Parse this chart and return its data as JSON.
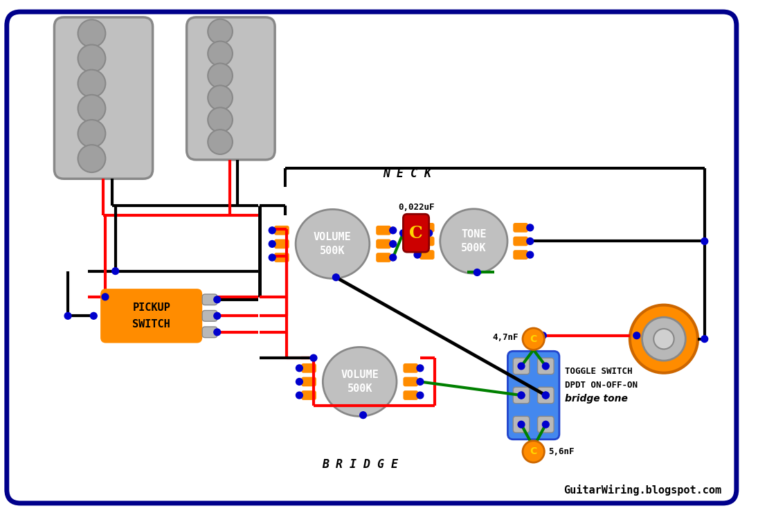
{
  "bg_color": "#ffffff",
  "border_color": "#00008B",
  "neck_label": "N E C K",
  "bridge_label": "B R I D G E",
  "pickup_switch_label": [
    "PICKUP",
    "SWITCH"
  ],
  "vol_label": [
    "VOLUME",
    "500K"
  ],
  "tone_label": [
    "TONE",
    "500K"
  ],
  "cap1_label": "0,022uF",
  "cap2_label": "4,7nF",
  "cap3_label": "5,6nF",
  "toggle_label1": "TOGGLE SWITCH",
  "toggle_label2": "DPDT ON-OFF-ON",
  "toggle_label3": "bridge tone",
  "title_text": "GuitarWiring.blogspot.com",
  "gray_body": "#c0c0c0",
  "gray_pole": "#a0a0a0",
  "gray_dark": "#888888",
  "orange": "#FF8C00",
  "blue_dot": "#0000cd",
  "green_wire": "#008000",
  "red_wire": "#FF0000",
  "black_wire": "#000000",
  "blue_switch": "#4488EE",
  "red_cap": "#CC0000",
  "yellow": "#FFD700",
  "dark_blue": "#00008B",
  "lug_gray": "#b8b8b8"
}
